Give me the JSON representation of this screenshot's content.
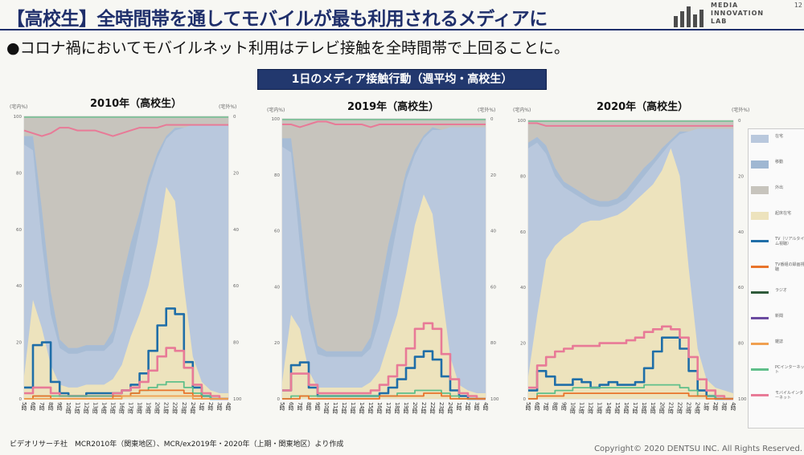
{
  "header": {
    "title": "【高校生】全時間帯を通してモバイルが最も利用されるメディアに",
    "logo_text": [
      "MEDIA",
      "INNOVATION",
      "LAB"
    ],
    "page_number": "12"
  },
  "bullet": "●コロナ禍においてモバイルネット利用はテレビ接触を全時間帯で上回ることに。",
  "banner": "1日のメディア接触行動（週平均・高校生）",
  "axis_units": {
    "left": "(宅内%)",
    "right": "(宅外%)"
  },
  "legend": {
    "items": [
      {
        "label": "在宅",
        "kind": "area",
        "color": "#b9c8dd"
      },
      {
        "label": "移動",
        "kind": "area",
        "color": "#9fb7d2"
      },
      {
        "label": "外出",
        "kind": "area",
        "color": "#c7c4bd"
      },
      {
        "label": "起床在宅",
        "kind": "area",
        "color": "#ede3bd"
      },
      {
        "label": "TV（リアルタイム視聴）",
        "kind": "line",
        "color": "#1f6ea8"
      },
      {
        "label": "TV番組の録画視聴",
        "kind": "line",
        "color": "#e8742b"
      },
      {
        "label": "ラジオ",
        "kind": "line",
        "color": "#2f5a3a"
      },
      {
        "label": "新聞",
        "kind": "line",
        "color": "#6a4aa0"
      },
      {
        "label": "雑誌",
        "kind": "line",
        "color": "#f0a050"
      },
      {
        "label": "PCインターネット",
        "kind": "line",
        "color": "#5fbf8a"
      },
      {
        "label": "モバイルインターネット",
        "kind": "line",
        "color": "#e87a97"
      }
    ]
  },
  "x_ticks": [
    "5時",
    "6時",
    "7時",
    "8時",
    "9時",
    "10時",
    "11時",
    "12時",
    "13時",
    "14時",
    "15時",
    "16時",
    "17時",
    "18時",
    "19時",
    "20時",
    "21時",
    "22時",
    "23時",
    "24時",
    "1時",
    "2時",
    "3時",
    "4時"
  ],
  "chart_data": [
    {
      "type": "area",
      "title": "2010年（高校生）",
      "x": [
        5,
        6,
        7,
        8,
        9,
        10,
        11,
        12,
        13,
        14,
        15,
        16,
        17,
        18,
        19,
        20,
        21,
        22,
        23,
        24,
        25,
        26,
        27,
        28
      ],
      "y_left_range": [
        0,
        100
      ],
      "y_right_ticks": [
        0,
        20,
        40,
        60,
        80,
        100
      ],
      "y_left_ticks": [
        0,
        20,
        40,
        60,
        80,
        100
      ],
      "areas": {
        "at_home_awake": [
          8,
          35,
          25,
          12,
          5,
          4,
          4,
          5,
          5,
          5,
          7,
          12,
          22,
          30,
          40,
          55,
          75,
          70,
          40,
          15,
          6,
          3,
          2,
          2
        ],
        "at_home_total": [
          90,
          88,
          55,
          30,
          18,
          16,
          16,
          17,
          17,
          17,
          20,
          30,
          45,
          60,
          75,
          85,
          92,
          95,
          96,
          97,
          97,
          97,
          97,
          97
        ],
        "moving": [
          3,
          5,
          12,
          8,
          3,
          2,
          2,
          2,
          2,
          2,
          4,
          10,
          10,
          6,
          3,
          2,
          1,
          1,
          0,
          0,
          0,
          0,
          0,
          0
        ],
        "out_of_home": [
          7,
          7,
          33,
          62,
          79,
          82,
          82,
          81,
          81,
          81,
          76,
          58,
          45,
          34,
          22,
          13,
          7,
          4,
          4,
          3,
          3,
          3,
          3,
          3
        ]
      },
      "series": [
        {
          "name": "TV（リアルタイム視聴）",
          "values": [
            4,
            19,
            20,
            6,
            2,
            1,
            1,
            2,
            2,
            2,
            2,
            3,
            5,
            9,
            17,
            26,
            32,
            30,
            13,
            4,
            1,
            0,
            0,
            0
          ]
        },
        {
          "name": "モバイルインターネット",
          "values": [
            2,
            4,
            4,
            2,
            1,
            1,
            1,
            1,
            1,
            1,
            2,
            3,
            4,
            6,
            10,
            15,
            18,
            17,
            11,
            5,
            2,
            1,
            0,
            0
          ]
        },
        {
          "name": "PCインターネット",
          "values": [
            0,
            1,
            1,
            1,
            1,
            1,
            1,
            1,
            1,
            1,
            1,
            1,
            2,
            3,
            4,
            5,
            6,
            6,
            4,
            2,
            1,
            0,
            0,
            0
          ]
        },
        {
          "name": "TV番組の録画視聴",
          "values": [
            0,
            1,
            1,
            0,
            0,
            0,
            0,
            0,
            0,
            0,
            1,
            1,
            2,
            3,
            3,
            3,
            3,
            3,
            2,
            1,
            0,
            0,
            0,
            0
          ]
        },
        {
          "name": "雑誌",
          "values": [
            0,
            0,
            0,
            0,
            0,
            0,
            0,
            0,
            0,
            0,
            0,
            1,
            1,
            1,
            1,
            1,
            1,
            1,
            1,
            0,
            0,
            0,
            0,
            0
          ]
        }
      ],
      "mobile_out_of_home": [
        95,
        94,
        93,
        94,
        96,
        96,
        95,
        95,
        95,
        94,
        93,
        94,
        95,
        96,
        96,
        96,
        97,
        97,
        97,
        97,
        97,
        97,
        97,
        97
      ]
    },
    {
      "type": "area",
      "title": "2019年（高校生）",
      "x": [
        5,
        6,
        7,
        8,
        9,
        10,
        11,
        12,
        13,
        14,
        15,
        16,
        17,
        18,
        19,
        20,
        21,
        22,
        23,
        24,
        25,
        26,
        27,
        28
      ],
      "y_left_range": [
        0,
        100
      ],
      "y_right_ticks": [
        0,
        20,
        40,
        60,
        80,
        100
      ],
      "y_left_ticks": [
        0,
        20,
        40,
        60,
        80,
        100
      ],
      "areas": {
        "at_home_awake": [
          6,
          30,
          25,
          10,
          4,
          4,
          4,
          4,
          4,
          4,
          6,
          10,
          20,
          30,
          45,
          62,
          73,
          66,
          40,
          15,
          5,
          3,
          2,
          2
        ],
        "at_home_total": [
          90,
          88,
          55,
          28,
          16,
          15,
          15,
          15,
          15,
          15,
          18,
          28,
          45,
          62,
          78,
          87,
          93,
          96,
          96,
          97,
          97,
          97,
          97,
          97
        ],
        "moving": [
          3,
          5,
          12,
          8,
          3,
          2,
          2,
          2,
          2,
          2,
          4,
          10,
          10,
          6,
          3,
          2,
          1,
          1,
          0,
          0,
          0,
          0,
          0,
          0
        ],
        "out_of_home": [
          7,
          7,
          33,
          64,
          81,
          83,
          83,
          83,
          83,
          83,
          78,
          62,
          45,
          32,
          19,
          11,
          6,
          3,
          4,
          3,
          3,
          3,
          3,
          3
        ]
      },
      "series": [
        {
          "name": "TV（リアルタイム視聴）",
          "values": [
            3,
            12,
            13,
            4,
            1,
            1,
            1,
            1,
            1,
            1,
            1,
            2,
            4,
            7,
            11,
            15,
            17,
            14,
            8,
            3,
            1,
            0,
            0,
            0
          ]
        },
        {
          "name": "モバイルインターネット",
          "values": [
            3,
            9,
            9,
            5,
            2,
            2,
            2,
            2,
            2,
            2,
            3,
            5,
            8,
            12,
            18,
            25,
            27,
            25,
            16,
            7,
            2,
            1,
            0,
            0
          ]
        },
        {
          "name": "PCインターネット",
          "values": [
            0,
            1,
            1,
            1,
            1,
            1,
            1,
            1,
            1,
            1,
            1,
            1,
            1,
            2,
            2,
            3,
            3,
            3,
            2,
            1,
            0,
            0,
            0,
            0
          ]
        },
        {
          "name": "TV番組の録画視聴",
          "values": [
            0,
            0,
            1,
            0,
            0,
            0,
            0,
            0,
            0,
            0,
            0,
            1,
            1,
            1,
            1,
            1,
            2,
            2,
            1,
            0,
            0,
            0,
            0,
            0
          ]
        }
      ],
      "mobile_out_of_home": [
        98,
        98,
        97,
        98,
        99,
        99,
        98,
        98,
        98,
        98,
        97,
        98,
        98,
        98,
        98,
        98,
        98,
        98,
        98,
        98,
        98,
        98,
        98,
        98
      ]
    },
    {
      "type": "area",
      "title": "2020年（高校生）",
      "x": [
        5,
        6,
        7,
        8,
        9,
        10,
        11,
        12,
        13,
        14,
        15,
        16,
        17,
        18,
        19,
        20,
        21,
        22,
        23,
        24,
        25,
        26,
        27,
        28
      ],
      "y_left_range": [
        0,
        100
      ],
      "y_right_ticks": [
        0,
        20,
        40,
        60,
        80,
        100
      ],
      "y_left_ticks": [
        0,
        20,
        40,
        60,
        80,
        100
      ],
      "areas": {
        "at_home_awake": [
          8,
          30,
          50,
          55,
          58,
          60,
          63,
          64,
          64,
          65,
          66,
          68,
          71,
          74,
          77,
          82,
          90,
          80,
          47,
          18,
          7,
          4,
          3,
          2
        ],
        "at_home_total": [
          90,
          92,
          88,
          80,
          76,
          74,
          72,
          70,
          69,
          69,
          70,
          72,
          76,
          80,
          84,
          88,
          92,
          95,
          96,
          97,
          97,
          97,
          97,
          97
        ],
        "moving": [
          2,
          2,
          3,
          3,
          2,
          2,
          2,
          2,
          2,
          2,
          2,
          3,
          3,
          3,
          2,
          2,
          1,
          1,
          0,
          0,
          0,
          0,
          0,
          0
        ],
        "out_of_home": [
          8,
          6,
          9,
          17,
          22,
          24,
          26,
          28,
          29,
          29,
          28,
          25,
          21,
          17,
          14,
          10,
          7,
          4,
          4,
          3,
          3,
          3,
          3,
          3
        ]
      },
      "series": [
        {
          "name": "TV（リアルタイム視聴）",
          "values": [
            3,
            10,
            8,
            5,
            5,
            7,
            6,
            4,
            5,
            6,
            5,
            5,
            6,
            11,
            17,
            22,
            22,
            18,
            10,
            3,
            1,
            0,
            0,
            0
          ]
        },
        {
          "name": "モバイルインターネット",
          "values": [
            4,
            12,
            15,
            17,
            18,
            19,
            19,
            19,
            20,
            20,
            20,
            21,
            22,
            24,
            25,
            26,
            25,
            22,
            15,
            7,
            3,
            1,
            0,
            0
          ]
        },
        {
          "name": "PCインターネット",
          "values": [
            0,
            2,
            2,
            3,
            3,
            4,
            4,
            4,
            4,
            4,
            4,
            4,
            4,
            5,
            5,
            5,
            5,
            4,
            3,
            1,
            1,
            0,
            0,
            0
          ]
        },
        {
          "name": "TV番組の録画視聴",
          "values": [
            0,
            1,
            1,
            1,
            2,
            2,
            2,
            2,
            2,
            2,
            2,
            2,
            2,
            2,
            2,
            2,
            2,
            2,
            1,
            1,
            0,
            0,
            0,
            0
          ]
        }
      ],
      "mobile_out_of_home": [
        99,
        99,
        98,
        98,
        98,
        98,
        98,
        98,
        98,
        98,
        98,
        98,
        98,
        98,
        98,
        98,
        98,
        98,
        98,
        98,
        98,
        98,
        98,
        98
      ]
    }
  ],
  "footnote": "ビデオリサーチ社　MCR2010年（関東地区）、MCR/ex2019年・2020年（上期・関東地区）より作成",
  "copyright": "Copyright© 2020 DENTSU INC. All Rights Reserved."
}
